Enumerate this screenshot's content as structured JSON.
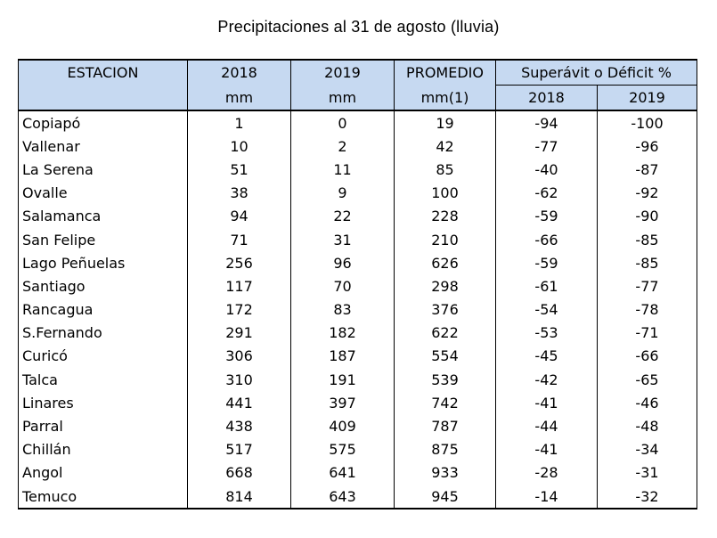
{
  "title": "Precipitaciones al 31 de agosto (lluvia)",
  "header": {
    "estacion": "ESTACION",
    "y2018": "2018",
    "y2019": "2019",
    "promedio": "PROMEDIO",
    "superavit": "Superávit  o Déficit %",
    "mm_2018": "mm",
    "mm_2019": "mm",
    "mm_promedio": "mm(1)",
    "sup_2018": "2018",
    "sup_2019": "2019"
  },
  "rows": [
    {
      "station": "Copiapó",
      "y2018": "1",
      "y2019": "0",
      "promedio": "19",
      "sup2018": "-94",
      "sup2019": "-100"
    },
    {
      "station": "Vallenar",
      "y2018": "10",
      "y2019": "2",
      "promedio": "42",
      "sup2018": "-77",
      "sup2019": "-96"
    },
    {
      "station": "La Serena",
      "y2018": "51",
      "y2019": "11",
      "promedio": "85",
      "sup2018": "-40",
      "sup2019": "-87"
    },
    {
      "station": "Ovalle",
      "y2018": "38",
      "y2019": "9",
      "promedio": "100",
      "sup2018": "-62",
      "sup2019": "-92"
    },
    {
      "station": "Salamanca",
      "y2018": "94",
      "y2019": "22",
      "promedio": "228",
      "sup2018": "-59",
      "sup2019": "-90"
    },
    {
      "station": "San Felipe",
      "y2018": "71",
      "y2019": "31",
      "promedio": "210",
      "sup2018": "-66",
      "sup2019": "-85"
    },
    {
      "station": "Lago Peñuelas",
      "y2018": "256",
      "y2019": "96",
      "promedio": "626",
      "sup2018": "-59",
      "sup2019": "-85"
    },
    {
      "station": "Santiago",
      "y2018": "117",
      "y2019": "70",
      "promedio": "298",
      "sup2018": "-61",
      "sup2019": "-77"
    },
    {
      "station": "Rancagua",
      "y2018": "172",
      "y2019": "83",
      "promedio": "376",
      "sup2018": "-54",
      "sup2019": "-78"
    },
    {
      "station": "S.Fernando",
      "y2018": "291",
      "y2019": "182",
      "promedio": "622",
      "sup2018": "-53",
      "sup2019": "-71"
    },
    {
      "station": "Curicó",
      "y2018": "306",
      "y2019": "187",
      "promedio": "554",
      "sup2018": "-45",
      "sup2019": "-66"
    },
    {
      "station": "Talca",
      "y2018": "310",
      "y2019": "191",
      "promedio": "539",
      "sup2018": "-42",
      "sup2019": "-65"
    },
    {
      "station": "Linares",
      "y2018": "441",
      "y2019": "397",
      "promedio": "742",
      "sup2018": "-41",
      "sup2019": "-46"
    },
    {
      "station": "Parral",
      "y2018": "438",
      "y2019": "409",
      "promedio": "787",
      "sup2018": "-44",
      "sup2019": "-48"
    },
    {
      "station": "Chillán",
      "y2018": "517",
      "y2019": "575",
      "promedio": "875",
      "sup2018": "-41",
      "sup2019": "-34"
    },
    {
      "station": "Angol",
      "y2018": "668",
      "y2019": "641",
      "promedio": "933",
      "sup2018": "-28",
      "sup2019": "-31"
    },
    {
      "station": "Temuco",
      "y2018": "814",
      "y2019": "643",
      "promedio": "945",
      "sup2018": "-14",
      "sup2019": "-32"
    }
  ],
  "colors": {
    "header_bg": "#c6d9f1",
    "border": "#000000"
  }
}
